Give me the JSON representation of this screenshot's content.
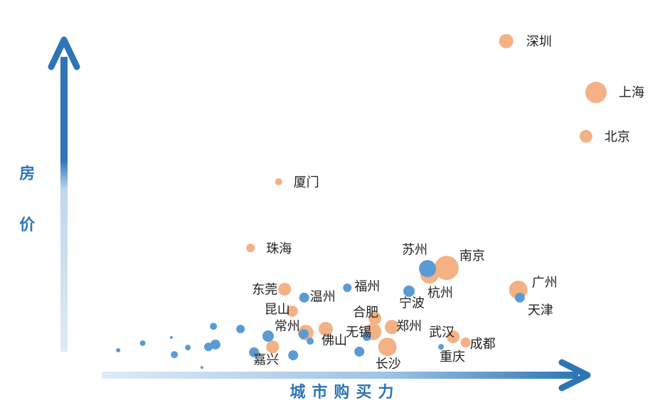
{
  "chart_data": {
    "type": "scatter",
    "x_label": "城市购买力",
    "y_label": "房价",
    "xlim": [
      0,
      100
    ],
    "ylim": [
      0,
      100
    ],
    "series": [
      {
        "color": "#f4b183",
        "labels": [
          "深圳",
          "上海",
          "北京",
          "厦门",
          "珠海",
          "南京",
          "杭州",
          "广州",
          "东莞",
          "昆山",
          "合肥",
          "郑州",
          "无锡",
          "武汉",
          "成都",
          "长沙",
          "佛山",
          "常州",
          "嘉兴"
        ],
        "x": [
          80.4,
          98.3,
          96.3,
          35.0,
          29.4,
          68.5,
          65.1,
          82.8,
          36.2,
          37.7,
          54.2,
          57.6,
          53.8,
          69.8,
          72.3,
          56.7,
          44.4,
          40.4,
          33.8
        ],
        "y": [
          97.3,
          82.1,
          69.1,
          55.6,
          36.0,
          30.1,
          28.2,
          23.6,
          23.8,
          17.3,
          15.2,
          12.6,
          11.2,
          9.7,
          8.0,
          6.7,
          12.0,
          10.9,
          6.7
        ],
        "sizes": [
          10,
          15,
          9,
          5,
          6,
          17,
          13,
          13,
          9,
          8,
          9,
          10,
          12,
          9,
          7,
          13,
          10,
          11,
          9
        ]
      },
      {
        "color": "#5b9bd5",
        "labels": [
          "苏州",
          "宁波",
          "天津",
          "福州",
          "温州",
          "重庆",
          null,
          null,
          null,
          null,
          null,
          null,
          null,
          null,
          null,
          null,
          null,
          null,
          null,
          null,
          null,
          null,
          null
        ],
        "x": [
          64.7,
          61.0,
          83.1,
          48.7,
          40.1,
          67.4,
          32.9,
          30.1,
          37.9,
          27.4,
          22.0,
          22.4,
          21.0,
          16.9,
          14.2,
          7.9,
          3.0,
          13.6,
          19.7,
          41.3,
          40.0,
          52.6,
          51.1
        ],
        "y": [
          29.9,
          23.2,
          21.3,
          24.2,
          21.3,
          6.7,
          9.9,
          5.1,
          4.2,
          12.0,
          12.8,
          7.4,
          6.7,
          6.5,
          4.4,
          7.8,
          5.7,
          9.5,
          0.6,
          8.4,
          10.5,
          9.7,
          5.3
        ],
        "sizes": [
          12,
          8,
          7,
          6,
          7,
          4,
          8,
          7,
          7,
          6,
          5,
          7,
          6,
          4,
          5,
          4,
          3,
          2,
          2,
          5,
          7,
          6,
          7
        ]
      }
    ]
  }
}
